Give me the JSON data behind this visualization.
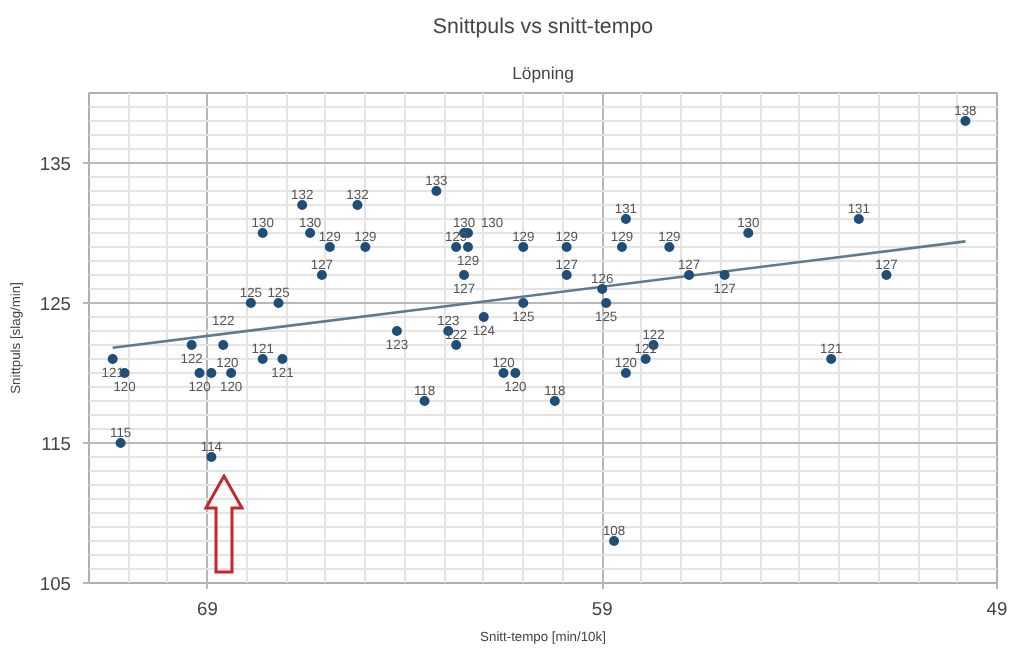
{
  "chart_data": {
    "type": "scatter",
    "title": "Snittpuls vs snitt-tempo",
    "subtitle": "Löpning",
    "xlabel": "Snitt-tempo [min/10k]",
    "ylabel": "Snittpuls [slag/min]",
    "xlim": [
      72,
      49
    ],
    "ylim": [
      105,
      140
    ],
    "xticks": [
      {
        "value": 72,
        "label": null
      },
      {
        "value": 71,
        "label": null
      },
      {
        "value": 70,
        "label": null
      },
      69,
      {
        "value": 68,
        "label": null
      },
      {
        "value": 67,
        "label": null
      },
      {
        "value": 66,
        "label": null
      },
      {
        "value": 65,
        "label": null
      },
      {
        "value": 64,
        "label": null
      },
      {
        "value": 63,
        "label": null
      },
      {
        "value": 62,
        "label": null
      },
      {
        "value": 61,
        "label": null
      },
      {
        "value": 60,
        "label": null
      },
      59,
      {
        "value": 58,
        "label": null
      },
      {
        "value": 57,
        "label": null
      },
      {
        "value": 56,
        "label": null
      },
      {
        "value": 55,
        "label": null
      },
      {
        "value": 54,
        "label": null
      },
      {
        "value": 53,
        "label": null
      },
      {
        "value": 52,
        "label": null
      },
      {
        "value": 51,
        "label": null
      },
      {
        "value": 50,
        "label": null
      },
      49
    ],
    "yticks": [
      105,
      {
        "value": 106,
        "label": null
      },
      {
        "value": 107,
        "label": null
      },
      {
        "value": 108,
        "label": null
      },
      {
        "value": 109,
        "label": null
      },
      {
        "value": 110,
        "label": null
      },
      {
        "value": 111,
        "label": null
      },
      {
        "value": 112,
        "label": null
      },
      {
        "value": 113,
        "label": null
      },
      {
        "value": 114,
        "label": null
      },
      115,
      {
        "value": 116,
        "label": null
      },
      {
        "value": 117,
        "label": null
      },
      {
        "value": 118,
        "label": null
      },
      {
        "value": 119,
        "label": null
      },
      {
        "value": 120,
        "label": null
      },
      {
        "value": 121,
        "label": null
      },
      {
        "value": 122,
        "label": null
      },
      {
        "value": 123,
        "label": null
      },
      {
        "value": 124,
        "label": null
      },
      125,
      {
        "value": 126,
        "label": null
      },
      {
        "value": 127,
        "label": null
      },
      {
        "value": 128,
        "label": null
      },
      {
        "value": 129,
        "label": null
      },
      {
        "value": 130,
        "label": null
      },
      {
        "value": 131,
        "label": null
      },
      {
        "value": 132,
        "label": null
      },
      {
        "value": 133,
        "label": null
      },
      {
        "value": 134,
        "label": null
      },
      135,
      {
        "value": 136,
        "label": null
      },
      {
        "value": 137,
        "label": null
      },
      {
        "value": 138,
        "label": null
      },
      {
        "value": 139,
        "label": null
      }
    ],
    "grid": true,
    "marker": "circle",
    "series": [
      {
        "color": "#1f4e79",
        "value_labels": [
          "121",
          "120",
          "115",
          "122",
          "120",
          "120",
          "114",
          "122",
          "120",
          "121",
          "121",
          "125",
          "125",
          "130",
          "130",
          "132",
          "132",
          "129",
          "129",
          "127",
          "133",
          "123",
          "118",
          "123",
          "122",
          "129",
          "130",
          "130",
          "129",
          "127",
          "124",
          "120",
          "120",
          "129",
          "125",
          "129",
          "127",
          "118",
          "126",
          "125",
          "131",
          "129",
          "120",
          "108",
          "122",
          "121",
          "129",
          "130",
          "127",
          "127",
          "131",
          "121",
          "127",
          "138"
        ],
        "x": [
          71.4,
          71.1,
          71.2,
          69.4,
          69.2,
          68.9,
          68.9,
          68.6,
          68.4,
          67.6,
          67.1,
          67.9,
          67.2,
          67.6,
          66.4,
          66.6,
          65.2,
          65.9,
          65.0,
          66.1,
          63.2,
          64.2,
          63.5,
          62.9,
          62.7,
          62.7,
          62.5,
          62.4,
          62.4,
          62.5,
          62.0,
          61.5,
          61.2,
          61.0,
          61.0,
          59.9,
          59.9,
          60.2,
          59.0,
          58.9,
          58.4,
          58.5,
          58.4,
          58.7,
          57.7,
          57.9,
          57.3,
          55.3,
          56.8,
          55.9,
          52.5,
          53.2,
          51.8,
          49.8
        ],
        "values": [
          121,
          120,
          115,
          122,
          120,
          120,
          114,
          122,
          120,
          121,
          121,
          125,
          125,
          130,
          130,
          132,
          132,
          129,
          129,
          127,
          133,
          123,
          118,
          123,
          122,
          129,
          130,
          130,
          129,
          127,
          124,
          120,
          120,
          129,
          125,
          129,
          127,
          118,
          126,
          125,
          131,
          129,
          120,
          108,
          122,
          121,
          129,
          130,
          127,
          127,
          131,
          121,
          127,
          138
        ]
      },
      {
        "type": "line",
        "color": "#5b7b8e",
        "marker": "none",
        "x": [
          71.4,
          49.8
        ],
        "values": [
          121.8,
          129.4
        ]
      }
    ]
  }
}
